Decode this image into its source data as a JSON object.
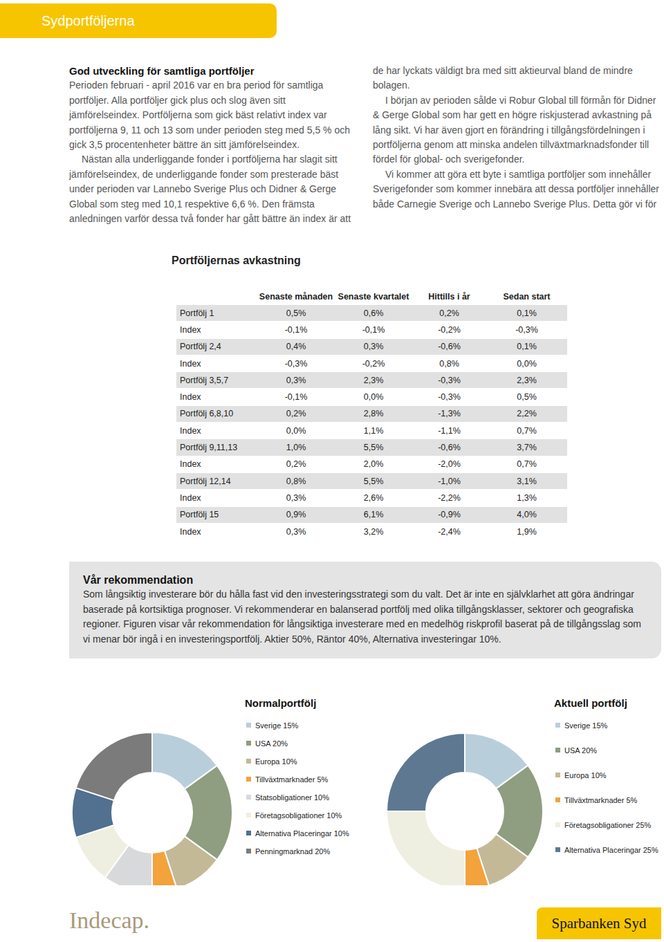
{
  "header": {
    "title": "Sydportföljerna"
  },
  "article": {
    "title": "God utveckling för samtliga portföljer",
    "paragraphs": [
      "Perioden februari - april 2016 var en bra period för samtliga portföljer. Alla portföljer gick plus och slog även sitt jämförelseindex. Portföljerna som gick bäst relativt index var portföljerna 9, 11 och 13 som under perioden steg med 5,5 % och gick 3,5 procentenheter bättre än sitt jämförelseindex.",
      "Nästan alla underliggande fonder i portföljerna har slagit sitt jämförelseindex, de underliggande fonder som presterade bäst under perioden var Lannebo Sverige Plus och Didner & Gerge Global som steg med 10,1 respektive 6,6 %. Den främsta anledningen varför dessa två fonder har gått bättre än index är att de har lyckats väldigt bra med sitt aktieurval bland de mindre bolagen.",
      "I början av perioden sålde vi Robur Global till förmån för Didner & Gerge Global som har gett en högre riskjusterad avkastning på lång sikt. Vi har även gjort en förändring i tillgångsfördelningen i portföljerna genom att minska andelen tillväxtmarknadsfonder till fördel för global- och sverigefonder.",
      "Vi kommer att göra ett byte i samtliga portföljer som innehåller Sverigefonder som kommer innebära att dessa portföljer innehåller både Carnegie Sverige och Lannebo Sverige Plus. Detta gör vi för att kombinationen av fonderna ger en lägre risk och därav en högre förväntad riskjusterad avkastning."
    ]
  },
  "table": {
    "title": "Portföljernas avkastning",
    "columns": [
      "",
      "Senaste månaden",
      "Senaste kvartalet",
      "Hittills i år",
      "Sedan start"
    ],
    "rows": [
      [
        "Portfölj 1",
        "0,5%",
        "0,6%",
        "0,2%",
        "0,1%"
      ],
      [
        "Index",
        "-0,1%",
        "-0,1%",
        "-0,2%",
        "-0,3%"
      ],
      [
        "Portfölj 2,4",
        "0,4%",
        "0,3%",
        "-0,6%",
        "0,1%"
      ],
      [
        "Index",
        "-0,3%",
        "-0,2%",
        "0,8%",
        "0,0%"
      ],
      [
        "Portfölj 3,5,7",
        "0,3%",
        "2,3%",
        "-0,3%",
        "2,3%"
      ],
      [
        "Index",
        "-0,1%",
        "0,0%",
        "-0,3%",
        "0,5%"
      ],
      [
        "Portfölj 6,8,10",
        "0,2%",
        "2,8%",
        "-1,3%",
        "2,2%"
      ],
      [
        "Index",
        "0,0%",
        "1,1%",
        "-1,1%",
        "0,7%"
      ],
      [
        "Portfölj 9,11,13",
        "1,0%",
        "5,5%",
        "-0,6%",
        "3,7%"
      ],
      [
        "Index",
        "0,2%",
        "2,0%",
        "-2,0%",
        "0,7%"
      ],
      [
        "Portfölj 12,14",
        "0,8%",
        "5,5%",
        "-1,0%",
        "3,1%"
      ],
      [
        "Index",
        "0,3%",
        "2,6%",
        "-2,2%",
        "1,3%"
      ],
      [
        "Portfölj 15",
        "0,9%",
        "6,1%",
        "-0,9%",
        "4,0%"
      ],
      [
        "Index",
        "0,3%",
        "3,2%",
        "-2,4%",
        "1,9%"
      ]
    ]
  },
  "recommendation": {
    "title": "Vår rekommendation",
    "text": "Som långsiktig investerare bör du hålla fast vid den investeringsstrategi som du valt. Det är inte en självklarhet att göra ändringar baserade på kortsiktiga prognoser. Vi rekommenderar en balanserad portfölj med olika tillgångsklasser, sektorer och geografiska regioner. Figuren visar vår rekommendation för långsiktiga investerare med en medelhög riskprofil baserat på de tillgångsslag som vi menar bör ingå i en investeringsportfölj. Aktier 50%, Räntor 40%, Alternativa investeringar 10%."
  },
  "chart_data": [
    {
      "type": "pie",
      "title": "Normalportfölj",
      "categories": [
        "Sverige 15%",
        "USA 20%",
        "Europa 10%",
        "Tillväxtmarknader 5%",
        "Statsobligationer 10%",
        "Företagsobligationer 10%",
        "Alternativa Placeringar 10%",
        "Penningmarknad 20%"
      ],
      "values": [
        15,
        20,
        10,
        5,
        10,
        10,
        10,
        20
      ],
      "colors": [
        "#b9cedb",
        "#8f9d80",
        "#c3b997",
        "#f3a23c",
        "#d8d9da",
        "#efefe1",
        "#52708f",
        "#7b7b7b"
      ],
      "legend": "right"
    },
    {
      "type": "pie",
      "title": "Aktuell portfölj",
      "categories": [
        "Sverige 15%",
        "USA 20%",
        "Europa 10%",
        "Tillväxtmarknader 5%",
        "Företagsobligationer 25%",
        "Alternativa Placeringar 25%"
      ],
      "values": [
        15,
        20,
        10,
        5,
        25,
        25
      ],
      "colors": [
        "#b9cedb",
        "#8f9d80",
        "#c3b997",
        "#f3a23c",
        "#efefe1",
        "#5e7891"
      ],
      "legend": "right"
    }
  ],
  "footer": {
    "left": "Indecap.",
    "right": "Sparbanken Syd"
  }
}
